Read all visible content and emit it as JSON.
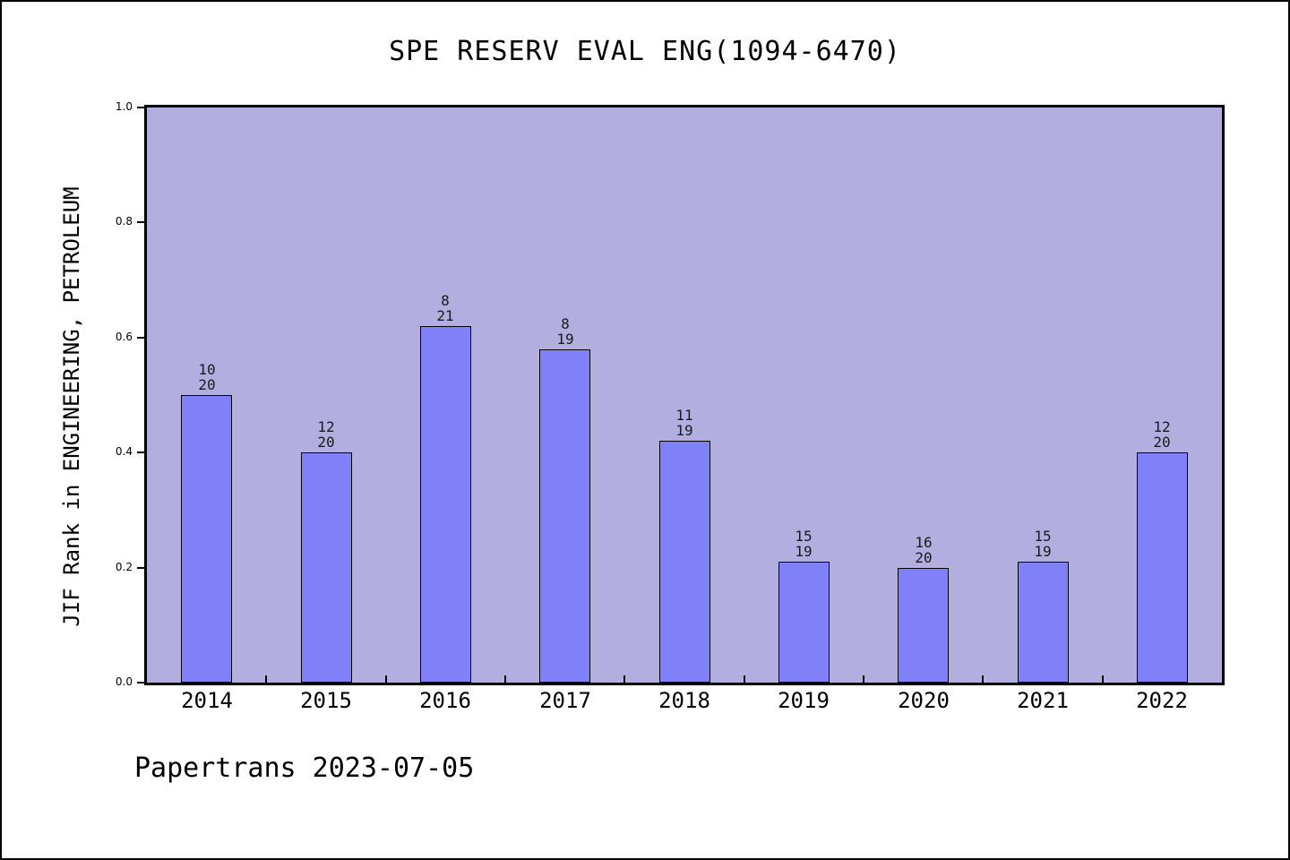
{
  "title": "SPE RESERV EVAL ENG(1094-6470)",
  "footer": "Papertrans 2023-07-05",
  "chart_data": {
    "type": "bar",
    "title": "SPE RESERV EVAL ENG(1094-6470)",
    "xlabel": "",
    "ylabel": "JIF Rank in ENGINEERING, PETROLEUM",
    "ylim": [
      0.0,
      1.0
    ],
    "ytick_labels": [
      "0.0",
      "0.2",
      "0.4",
      "0.6",
      "0.8",
      "1.0"
    ],
    "grid": false,
    "legend_position": "none",
    "categories": [
      "2014",
      "2015",
      "2016",
      "2017",
      "2018",
      "2019",
      "2020",
      "2021",
      "2022"
    ],
    "bars": [
      {
        "year": "2014",
        "rank": "10",
        "total": "20",
        "value": 0.5
      },
      {
        "year": "2015",
        "rank": "12",
        "total": "20",
        "value": 0.4
      },
      {
        "year": "2016",
        "rank": "8",
        "total": "21",
        "value": 0.62
      },
      {
        "year": "2017",
        "rank": "8",
        "total": "19",
        "value": 0.58
      },
      {
        "year": "2018",
        "rank": "11",
        "total": "19",
        "value": 0.42
      },
      {
        "year": "2019",
        "rank": "15",
        "total": "19",
        "value": 0.21
      },
      {
        "year": "2020",
        "rank": "16",
        "total": "20",
        "value": 0.2
      },
      {
        "year": "2021",
        "rank": "15",
        "total": "19",
        "value": 0.21
      },
      {
        "year": "2022",
        "rank": "12",
        "total": "20",
        "value": 0.4
      }
    ],
    "colors": {
      "bar_fill": "#8080F8",
      "bar_edge": "#000000",
      "plot_background": "#B3AEE0",
      "text": "#000000"
    }
  }
}
